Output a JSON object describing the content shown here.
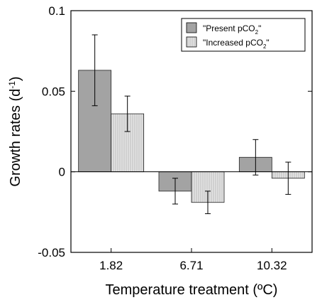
{
  "chart_data": {
    "type": "bar",
    "categories": [
      "1.82",
      "6.71",
      "10.32"
    ],
    "series": [
      {
        "name": "\"Present pCO₂\"",
        "name_parts": [
          "\"Present pCO",
          "2",
          "\""
        ],
        "values": [
          0.063,
          -0.012,
          0.009
        ],
        "errors": [
          0.022,
          0.008,
          0.011
        ],
        "color": "#a3a3a3",
        "pattern": "solid"
      },
      {
        "name": "\"Increased pCO₂\"",
        "name_parts": [
          "\"Increased pCO",
          "2",
          "\""
        ],
        "values": [
          0.036,
          -0.019,
          -0.004
        ],
        "errors": [
          0.011,
          0.007,
          0.01
        ],
        "color": "#dcdcdc",
        "pattern": "vertical-lines"
      }
    ],
    "xlabel": "Temperature treatment (ºC)",
    "ylabel_parts": [
      "Growth rates (d",
      "-1",
      ")"
    ],
    "ylim": [
      -0.05,
      0.1
    ],
    "yticks": [
      -0.05,
      0,
      0.05,
      0.1
    ],
    "ytick_labels": [
      "-0.05",
      "0",
      "0.05",
      "0.1"
    ],
    "zero_line": true,
    "grid": false,
    "legend_position": "top-right"
  }
}
